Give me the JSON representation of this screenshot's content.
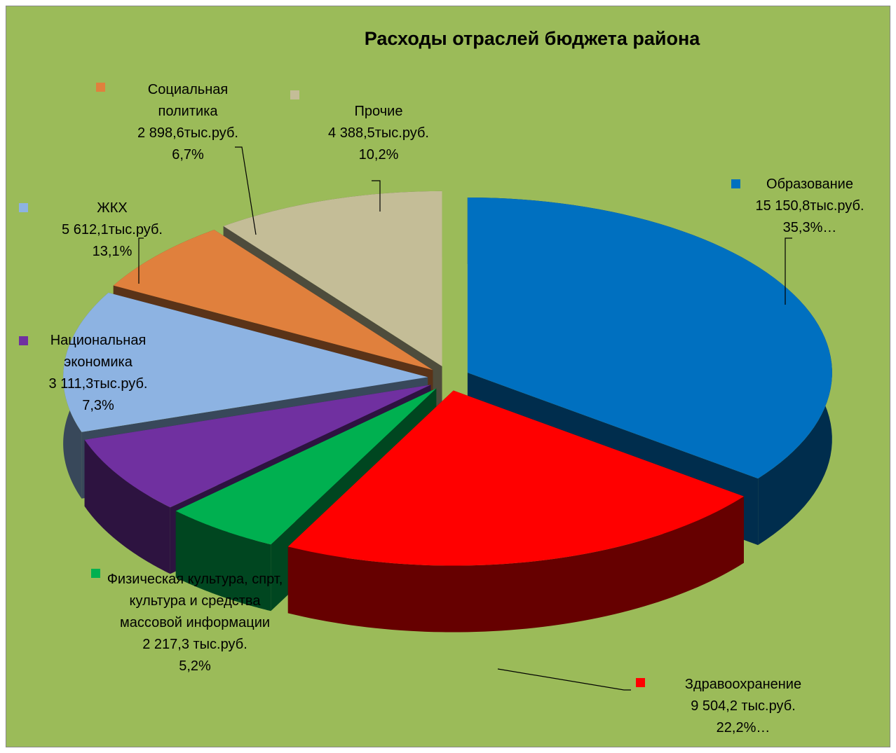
{
  "chart_data": {
    "type": "pie",
    "title": "Расходы отраслей бюджета района",
    "categories": [
      "Образование",
      "Здравоохранение",
      "Физическая культура, спрт, культура и средства массовой информации",
      "Национальная экономика",
      "ЖКХ",
      "Социальная политика",
      "Прочие"
    ],
    "values": [
      15150.8,
      9504.2,
      2217.3,
      3111.3,
      5612.1,
      2898.6,
      4388.5
    ],
    "value_labels": [
      "15 150,8тыс.руб.",
      "9 504,2 тыс.руб.",
      "2 217,3 тыс.руб.",
      "3 111,3тыс.руб.",
      "5 612,1тыс.руб.",
      "2 898,6тыс.руб.",
      "4 388,5тыс.руб."
    ],
    "percents": [
      35.3,
      22.2,
      5.2,
      7.3,
      13.1,
      6.7,
      10.2
    ],
    "percent_labels": [
      "35,3%…",
      "22,2%…",
      "5,2%",
      "7,3%",
      "13,1%",
      "6,7%",
      "10,2%"
    ],
    "colors": [
      "#0070c0",
      "#ff0000",
      "#00b050",
      "#7030a0",
      "#8db3e2",
      "#e0803d",
      "#c4bd97"
    ]
  }
}
